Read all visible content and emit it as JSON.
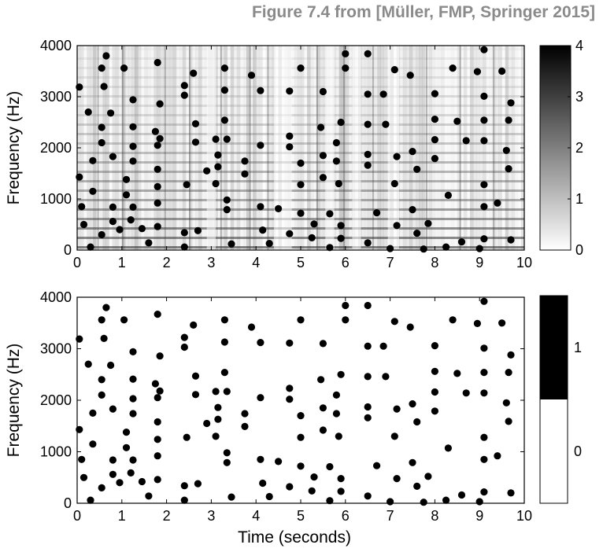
{
  "figure_caption": "Figure 7.4 from [Müller, FMP, Springer 2015]",
  "chart_data": [
    {
      "type": "scatter",
      "background": "spectrogram",
      "xlim": [
        0,
        10
      ],
      "ylim": [
        0,
        4000
      ],
      "xticks": [
        "0",
        "1",
        "2",
        "3",
        "4",
        "5",
        "6",
        "7",
        "8",
        "9",
        "10"
      ],
      "yticks": [
        "0",
        "1000",
        "2000",
        "3000",
        "4000"
      ],
      "xlabel": "",
      "ylabel": "Frequency (Hz)",
      "colorbar": {
        "min": 0,
        "max": 4,
        "ticks": [
          "0",
          "1",
          "2",
          "3",
          "4"
        ]
      },
      "point_color": "#000000"
    },
    {
      "type": "scatter",
      "background": "none",
      "xlim": [
        0,
        10
      ],
      "ylim": [
        0,
        4000
      ],
      "xticks": [
        "0",
        "1",
        "2",
        "3",
        "4",
        "5",
        "6",
        "7",
        "8",
        "9",
        "10"
      ],
      "yticks": [
        "0",
        "1000",
        "2000",
        "3000",
        "4000"
      ],
      "xlabel": "Time (seconds)",
      "ylabel": "Frequency (Hz)",
      "colorbar": {
        "ticks": [
          "0",
          "1"
        ],
        "colors": [
          "#ffffff",
          "#000000"
        ]
      },
      "point_color": "#000000"
    }
  ],
  "peaks": [
    [
      0.05,
      3190
    ],
    [
      0.05,
      1430
    ],
    [
      0.1,
      850
    ],
    [
      0.15,
      500
    ],
    [
      0.25,
      2700
    ],
    [
      0.3,
      60
    ],
    [
      0.35,
      1150
    ],
    [
      0.35,
      1750
    ],
    [
      0.55,
      300
    ],
    [
      0.55,
      2100
    ],
    [
      0.55,
      2400
    ],
    [
      0.55,
      3560
    ],
    [
      0.6,
      3200
    ],
    [
      0.65,
      3800
    ],
    [
      0.75,
      2680
    ],
    [
      0.8,
      560
    ],
    [
      0.8,
      840
    ],
    [
      0.8,
      1830
    ],
    [
      0.95,
      400
    ],
    [
      1.05,
      3560
    ],
    [
      1.1,
      1080
    ],
    [
      1.1,
      1380
    ],
    [
      1.2,
      590
    ],
    [
      1.25,
      2940
    ],
    [
      1.25,
      840
    ],
    [
      1.25,
      2030
    ],
    [
      1.25,
      2410
    ],
    [
      1.25,
      1740
    ],
    [
      1.45,
      420
    ],
    [
      1.6,
      140
    ],
    [
      1.75,
      2320
    ],
    [
      1.8,
      3670
    ],
    [
      1.8,
      2050
    ],
    [
      1.8,
      1580
    ],
    [
      1.8,
      1240
    ],
    [
      1.8,
      920
    ],
    [
      1.8,
      460
    ],
    [
      1.85,
      2180
    ],
    [
      1.85,
      2860
    ],
    [
      2.4,
      60
    ],
    [
      2.4,
      340
    ],
    [
      2.4,
      3220
    ],
    [
      2.4,
      3030
    ],
    [
      2.45,
      1280
    ],
    [
      2.6,
      3460
    ],
    [
      2.65,
      2470
    ],
    [
      2.65,
      2110
    ],
    [
      2.7,
      380
    ],
    [
      2.9,
      1550
    ],
    [
      3.1,
      1300
    ],
    [
      3.1,
      2170
    ],
    [
      3.15,
      1630
    ],
    [
      3.15,
      1860
    ],
    [
      3.3,
      3560
    ],
    [
      3.3,
      3130
    ],
    [
      3.3,
      2540
    ],
    [
      3.35,
      980
    ],
    [
      3.35,
      790
    ],
    [
      3.35,
      2170
    ],
    [
      3.45,
      120
    ],
    [
      3.75,
      1740
    ],
    [
      3.75,
      1490
    ],
    [
      3.9,
      3420
    ],
    [
      4.1,
      3120
    ],
    [
      4.1,
      2050
    ],
    [
      4.1,
      850
    ],
    [
      4.15,
      390
    ],
    [
      4.3,
      130
    ],
    [
      4.5,
      810
    ],
    [
      4.75,
      2230
    ],
    [
      4.75,
      2020
    ],
    [
      4.75,
      320
    ],
    [
      4.75,
      3110
    ],
    [
      5.0,
      3560
    ],
    [
      5.0,
      1700
    ],
    [
      5.0,
      1280
    ],
    [
      5.0,
      720
    ],
    [
      5.25,
      240
    ],
    [
      5.3,
      510
    ],
    [
      5.45,
      2400
    ],
    [
      5.5,
      3100
    ],
    [
      5.5,
      1850
    ],
    [
      5.5,
      1420
    ],
    [
      5.65,
      50
    ],
    [
      5.65,
      710
    ],
    [
      5.8,
      2100
    ],
    [
      5.8,
      1740
    ],
    [
      5.85,
      1300
    ],
    [
      5.9,
      230
    ],
    [
      5.9,
      480
    ],
    [
      5.9,
      2500
    ],
    [
      6.0,
      3840
    ],
    [
      6.0,
      3560
    ],
    [
      6.5,
      3840
    ],
    [
      6.5,
      3050
    ],
    [
      6.5,
      2460
    ],
    [
      6.5,
      1870
    ],
    [
      6.5,
      1660
    ],
    [
      6.5,
      140
    ],
    [
      6.7,
      730
    ],
    [
      6.85,
      3050
    ],
    [
      6.9,
      2460
    ],
    [
      7.0,
      30
    ],
    [
      7.1,
      3530
    ],
    [
      7.1,
      1300
    ],
    [
      7.15,
      1830
    ],
    [
      7.15,
      480
    ],
    [
      7.45,
      3420
    ],
    [
      7.5,
      1930
    ],
    [
      7.5,
      790
    ],
    [
      7.6,
      330
    ],
    [
      7.6,
      1580
    ],
    [
      7.75,
      20
    ],
    [
      7.85,
      520
    ],
    [
      8.0,
      1790
    ],
    [
      8.0,
      2160
    ],
    [
      8.0,
      2560
    ],
    [
      8.0,
      3060
    ],
    [
      8.25,
      60
    ],
    [
      8.3,
      1070
    ],
    [
      8.4,
      3560
    ],
    [
      8.5,
      2520
    ],
    [
      8.6,
      160
    ],
    [
      8.7,
      2140
    ],
    [
      8.95,
      3490
    ],
    [
      9.0,
      30
    ],
    [
      9.1,
      3920
    ],
    [
      9.1,
      2540
    ],
    [
      9.1,
      2140
    ],
    [
      9.1,
      3010
    ],
    [
      9.1,
      1280
    ],
    [
      9.1,
      850
    ],
    [
      9.1,
      220
    ],
    [
      9.4,
      920
    ],
    [
      9.5,
      3500
    ],
    [
      9.6,
      1950
    ],
    [
      9.65,
      2540
    ],
    [
      9.65,
      1590
    ],
    [
      9.7,
      2880
    ],
    [
      9.7,
      200
    ]
  ]
}
